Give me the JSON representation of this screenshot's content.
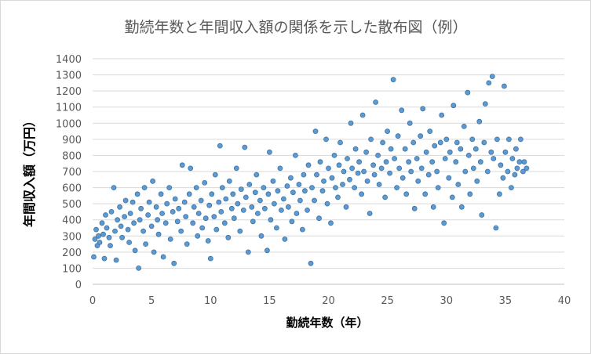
{
  "chart_data": {
    "type": "scatter",
    "title": "勤続年数と年間収入額の関係を示した散布図（例）",
    "xlabel": "勤続年数（年）",
    "ylabel": "年間収入額（万円）",
    "xlim": [
      0,
      40
    ],
    "ylim": [
      0,
      1400
    ],
    "xticks": [
      0,
      5,
      10,
      15,
      20,
      25,
      30,
      35,
      40
    ],
    "yticks": [
      0,
      100,
      200,
      300,
      400,
      500,
      600,
      700,
      800,
      900,
      1000,
      1100,
      1200,
      1300,
      1400
    ],
    "grid": "horizontal",
    "legend": "none",
    "marker_fill": "#5b9bd5",
    "marker_edge": "#41719c",
    "series": [
      {
        "points": [
          [
            0.1,
            170
          ],
          [
            0.2,
            280
          ],
          [
            0.3,
            340
          ],
          [
            0.4,
            240
          ],
          [
            0.5,
            300
          ],
          [
            0.6,
            260
          ],
          [
            0.8,
            380
          ],
          [
            0.9,
            310
          ],
          [
            1.0,
            160
          ],
          [
            1.1,
            430
          ],
          [
            1.2,
            350
          ],
          [
            1.4,
            290
          ],
          [
            1.5,
            240
          ],
          [
            1.6,
            450
          ],
          [
            1.8,
            600
          ],
          [
            1.9,
            330
          ],
          [
            2.0,
            150
          ],
          [
            2.1,
            400
          ],
          [
            2.3,
            480
          ],
          [
            2.4,
            360
          ],
          [
            2.5,
            290
          ],
          [
            2.7,
            420
          ],
          [
            2.8,
            520
          ],
          [
            3.0,
            340
          ],
          [
            3.1,
            260
          ],
          [
            3.2,
            440
          ],
          [
            3.4,
            510
          ],
          [
            3.5,
            380
          ],
          [
            3.6,
            210
          ],
          [
            3.8,
            560
          ],
          [
            3.9,
            100
          ],
          [
            4.0,
            400
          ],
          [
            4.1,
            470
          ],
          [
            4.3,
            330
          ],
          [
            4.4,
            600
          ],
          [
            4.5,
            250
          ],
          [
            4.7,
            430
          ],
          [
            4.8,
            510
          ],
          [
            5.0,
            360
          ],
          [
            5.1,
            640
          ],
          [
            5.2,
            200
          ],
          [
            5.4,
            480
          ],
          [
            5.5,
            400
          ],
          [
            5.6,
            310
          ],
          [
            5.8,
            560
          ],
          [
            5.9,
            440
          ],
          [
            6.0,
            170
          ],
          [
            6.2,
            380
          ],
          [
            6.3,
            500
          ],
          [
            6.5,
            600
          ],
          [
            6.6,
            280
          ],
          [
            6.8,
            450
          ],
          [
            6.9,
            130
          ],
          [
            7.0,
            530
          ],
          [
            7.2,
            390
          ],
          [
            7.3,
            470
          ],
          [
            7.5,
            330
          ],
          [
            7.6,
            740
          ],
          [
            7.8,
            510
          ],
          [
            7.9,
            420
          ],
          [
            8.0,
            250
          ],
          [
            8.2,
            560
          ],
          [
            8.3,
            720
          ],
          [
            8.5,
            380
          ],
          [
            8.6,
            480
          ],
          [
            8.8,
            600
          ],
          [
            8.9,
            300
          ],
          [
            9.0,
            440
          ],
          [
            9.2,
            520
          ],
          [
            9.3,
            350
          ],
          [
            9.5,
            630
          ],
          [
            9.6,
            410
          ],
          [
            9.8,
            270
          ],
          [
            9.9,
            490
          ],
          [
            10.0,
            160
          ],
          [
            10.1,
            560
          ],
          [
            10.3,
            420
          ],
          [
            10.4,
            680
          ],
          [
            10.5,
            340
          ],
          [
            10.7,
            510
          ],
          [
            10.8,
            860
          ],
          [
            10.9,
            450
          ],
          [
            11.0,
            600
          ],
          [
            11.2,
            380
          ],
          [
            11.3,
            530
          ],
          [
            11.5,
            290
          ],
          [
            11.6,
            640
          ],
          [
            11.8,
            470
          ],
          [
            11.9,
            560
          ],
          [
            12.0,
            410
          ],
          [
            12.2,
            720
          ],
          [
            12.3,
            500
          ],
          [
            12.5,
            330
          ],
          [
            12.6,
            590
          ],
          [
            12.8,
            460
          ],
          [
            12.9,
            850
          ],
          [
            13.0,
            540
          ],
          [
            13.2,
            200
          ],
          [
            13.3,
            620
          ],
          [
            13.5,
            480
          ],
          [
            13.6,
            390
          ],
          [
            13.8,
            570
          ],
          [
            13.9,
            680
          ],
          [
            14.0,
            440
          ],
          [
            14.2,
            520
          ],
          [
            14.3,
            300
          ],
          [
            14.5,
            600
          ],
          [
            14.6,
            470
          ],
          [
            14.8,
            210
          ],
          [
            14.9,
            560
          ],
          [
            15.0,
            820
          ],
          [
            15.1,
            400
          ],
          [
            15.3,
            640
          ],
          [
            15.4,
            500
          ],
          [
            15.6,
            350
          ],
          [
            15.7,
            580
          ],
          [
            15.9,
            720
          ],
          [
            16.0,
            460
          ],
          [
            16.2,
            530
          ],
          [
            16.3,
            280
          ],
          [
            16.5,
            610
          ],
          [
            16.6,
            480
          ],
          [
            16.8,
            660
          ],
          [
            16.9,
            390
          ],
          [
            17.0,
            570
          ],
          [
            17.2,
            800
          ],
          [
            17.3,
            440
          ],
          [
            17.5,
            620
          ],
          [
            17.6,
            520
          ],
          [
            17.8,
            340
          ],
          [
            17.9,
            680
          ],
          [
            18.0,
            580
          ],
          [
            18.2,
            460
          ],
          [
            18.3,
            740
          ],
          [
            18.5,
            130
          ],
          [
            18.6,
            600
          ],
          [
            18.8,
            520
          ],
          [
            18.9,
            950
          ],
          [
            19.0,
            680
          ],
          [
            19.2,
            410
          ],
          [
            19.3,
            760
          ],
          [
            19.5,
            580
          ],
          [
            19.6,
            640
          ],
          [
            19.8,
            900
          ],
          [
            19.9,
            500
          ],
          [
            20.0,
            720
          ],
          [
            20.2,
            380
          ],
          [
            20.3,
            660
          ],
          [
            20.5,
            800
          ],
          [
            20.6,
            600
          ],
          [
            20.8,
            540
          ],
          [
            20.9,
            740
          ],
          [
            21.0,
            880
          ],
          [
            21.2,
            620
          ],
          [
            21.3,
            700
          ],
          [
            21.5,
            480
          ],
          [
            21.6,
            780
          ],
          [
            21.8,
            650
          ],
          [
            21.9,
            1000
          ],
          [
            22.0,
            720
          ],
          [
            22.2,
            600
          ],
          [
            22.3,
            840
          ],
          [
            22.5,
            690
          ],
          [
            22.6,
            760
          ],
          [
            22.8,
            560
          ],
          [
            22.9,
            1050
          ],
          [
            23.0,
            700
          ],
          [
            23.2,
            820
          ],
          [
            23.3,
            640
          ],
          [
            23.5,
            440
          ],
          [
            23.6,
            900
          ],
          [
            23.8,
            740
          ],
          [
            23.9,
            680
          ],
          [
            24.0,
            1130
          ],
          [
            24.2,
            800
          ],
          [
            24.3,
            620
          ],
          [
            24.5,
            720
          ],
          [
            24.6,
            880
          ],
          [
            24.8,
            540
          ],
          [
            24.9,
            760
          ],
          [
            25.0,
            950
          ],
          [
            25.2,
            690
          ],
          [
            25.3,
            840
          ],
          [
            25.5,
            1270
          ],
          [
            25.6,
            780
          ],
          [
            25.8,
            600
          ],
          [
            25.9,
            920
          ],
          [
            26.0,
            720
          ],
          [
            26.2,
            1080
          ],
          [
            26.3,
            660
          ],
          [
            26.5,
            840
          ],
          [
            26.6,
            560
          ],
          [
            26.8,
            760
          ],
          [
            26.9,
            1000
          ],
          [
            27.0,
            700
          ],
          [
            27.2,
            880
          ],
          [
            27.3,
            470
          ],
          [
            27.5,
            780
          ],
          [
            27.6,
            640
          ],
          [
            27.8,
            920
          ],
          [
            27.9,
            720
          ],
          [
            28.0,
            1090
          ],
          [
            28.2,
            560
          ],
          [
            28.3,
            820
          ],
          [
            28.5,
            680
          ],
          [
            28.6,
            950
          ],
          [
            28.8,
            760
          ],
          [
            28.9,
            480
          ],
          [
            29.0,
            860
          ],
          [
            29.2,
            700
          ],
          [
            29.3,
            600
          ],
          [
            29.5,
            880
          ],
          [
            29.6,
            1050
          ],
          [
            29.8,
            380
          ],
          [
            29.9,
            780
          ],
          [
            30.0,
            900
          ],
          [
            30.2,
            660
          ],
          [
            30.3,
            820
          ],
          [
            30.5,
            540
          ],
          [
            30.6,
            1110
          ],
          [
            30.8,
            760
          ],
          [
            30.9,
            880
          ],
          [
            31.0,
            620
          ],
          [
            31.2,
            840
          ],
          [
            31.3,
            480
          ],
          [
            31.5,
            980
          ],
          [
            31.6,
            700
          ],
          [
            31.8,
            1190
          ],
          [
            31.9,
            800
          ],
          [
            32.0,
            560
          ],
          [
            32.2,
            900
          ],
          [
            32.3,
            720
          ],
          [
            32.5,
            840
          ],
          [
            32.6,
            640
          ],
          [
            32.8,
            1010
          ],
          [
            32.9,
            760
          ],
          [
            33.0,
            430
          ],
          [
            33.2,
            880
          ],
          [
            33.3,
            1120
          ],
          [
            33.5,
            700
          ],
          [
            33.6,
            1250
          ],
          [
            33.8,
            820
          ],
          [
            33.9,
            1290
          ],
          [
            34.0,
            780
          ],
          [
            34.2,
            350
          ],
          [
            34.3,
            900
          ],
          [
            34.5,
            560
          ],
          [
            34.6,
            740
          ],
          [
            34.8,
            660
          ],
          [
            34.9,
            1230
          ],
          [
            35.0,
            820
          ],
          [
            35.2,
            700
          ],
          [
            35.3,
            900
          ],
          [
            35.5,
            600
          ],
          [
            35.6,
            780
          ],
          [
            35.8,
            680
          ],
          [
            35.9,
            840
          ],
          [
            36.0,
            720
          ],
          [
            36.2,
            760
          ],
          [
            36.3,
            900
          ],
          [
            36.5,
            700
          ],
          [
            36.6,
            760
          ],
          [
            36.8,
            720
          ]
        ]
      }
    ]
  }
}
